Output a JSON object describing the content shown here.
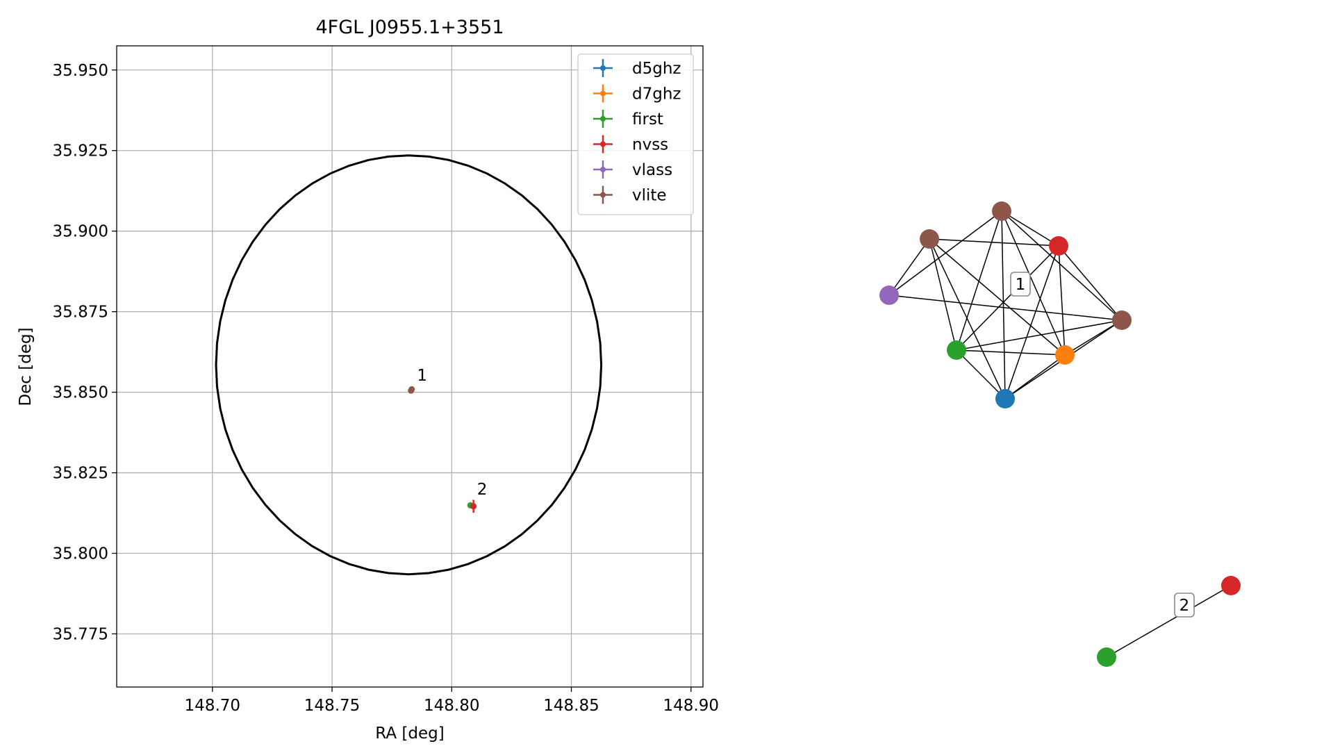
{
  "chart_data": [
    {
      "type": "scatter",
      "title": "4FGL J0955.1+3551",
      "xlabel": "RA [deg]",
      "ylabel": "Dec [deg]",
      "xlim": [
        148.66,
        148.905
      ],
      "ylim": [
        35.7585,
        35.9575
      ],
      "grid": true,
      "legend_position": "top-right",
      "xticks": [
        148.7,
        148.75,
        148.8,
        148.85,
        148.9
      ],
      "xtick_labels": [
        "148.70",
        "148.75",
        "148.80",
        "148.85",
        "148.90"
      ],
      "yticks": [
        35.775,
        35.8,
        35.825,
        35.85,
        35.875,
        35.9,
        35.925,
        35.95
      ],
      "ytick_labels": [
        "35.775",
        "35.800",
        "35.825",
        "35.850",
        "35.875",
        "35.900",
        "35.925",
        "35.950"
      ],
      "ellipse": {
        "center": [
          148.782,
          35.8585
        ],
        "semi_axis_ra": 0.0805,
        "semi_axis_dec": 0.065,
        "color": "#000000"
      },
      "series": [
        {
          "name": "d5ghz",
          "color": "#1f77b4",
          "points": []
        },
        {
          "name": "d7ghz",
          "color": "#ff7f0e",
          "points": []
        },
        {
          "name": "first",
          "color": "#2ca02c",
          "points": [
            {
              "x": 148.8078,
              "y": 35.8149,
              "xerr": 0.0004,
              "yerr": 0.0004
            }
          ]
        },
        {
          "name": "nvss",
          "color": "#d62728",
          "points": [
            {
              "x": 148.8091,
              "y": 35.8146,
              "xerr": 0.0012,
              "yerr": 0.002
            }
          ]
        },
        {
          "name": "vlass",
          "color": "#9467bd",
          "points": []
        },
        {
          "name": "vlite",
          "color": "#8c564b",
          "points": [
            {
              "x": 148.783,
              "y": 35.8505,
              "xerr": 0.0008,
              "yerr": 0.0008
            },
            {
              "x": 148.7833,
              "y": 35.8509,
              "xerr": 0.0008,
              "yerr": 0.0008
            }
          ]
        }
      ],
      "annotations": [
        {
          "text": "1",
          "x": 148.7855,
          "y": 35.8536
        },
        {
          "text": "2",
          "x": 148.8106,
          "y": 35.8182
        }
      ]
    },
    {
      "type": "network",
      "clusters": [
        {
          "label": "1",
          "nodes": [
            {
              "id": "a",
              "catalog": "vlite",
              "color": "#8c564b"
            },
            {
              "id": "b",
              "catalog": "vlite",
              "color": "#8c564b"
            },
            {
              "id": "c",
              "catalog": "nvss",
              "color": "#d62728"
            },
            {
              "id": "d",
              "catalog": "vlass",
              "color": "#9467bd"
            },
            {
              "id": "e",
              "catalog": "vlite",
              "color": "#8c564b"
            },
            {
              "id": "f",
              "catalog": "first",
              "color": "#2ca02c"
            },
            {
              "id": "g",
              "catalog": "d7ghz",
              "color": "#ff7f0e"
            },
            {
              "id": "h",
              "catalog": "d5ghz",
              "color": "#1f77b4"
            }
          ],
          "edges": [
            [
              "a",
              "c"
            ],
            [
              "a",
              "f"
            ],
            [
              "a",
              "g"
            ],
            [
              "a",
              "h"
            ],
            [
              "a",
              "d"
            ],
            [
              "a",
              "e"
            ],
            [
              "b",
              "d"
            ],
            [
              "b",
              "c"
            ],
            [
              "b",
              "f"
            ],
            [
              "b",
              "g"
            ],
            [
              "b",
              "h"
            ],
            [
              "c",
              "f"
            ],
            [
              "c",
              "g"
            ],
            [
              "c",
              "h"
            ],
            [
              "c",
              "e"
            ],
            [
              "d",
              "e"
            ],
            [
              "e",
              "f"
            ],
            [
              "e",
              "h"
            ],
            [
              "e",
              "g"
            ],
            [
              "f",
              "h"
            ],
            [
              "f",
              "g"
            ],
            [
              "g",
              "h"
            ]
          ]
        },
        {
          "label": "2",
          "nodes": [
            {
              "id": "i",
              "catalog": "first",
              "color": "#2ca02c"
            },
            {
              "id": "j",
              "catalog": "nvss",
              "color": "#d62728"
            }
          ],
          "edges": [
            [
              "i",
              "j"
            ]
          ]
        }
      ]
    }
  ]
}
